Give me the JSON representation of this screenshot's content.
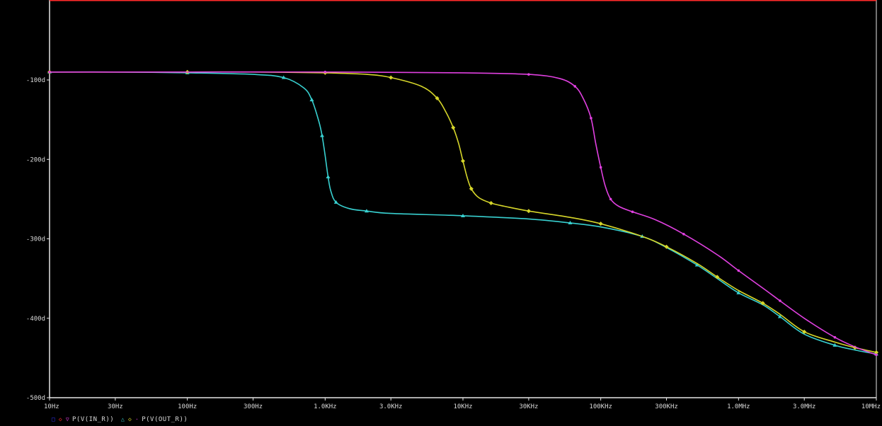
{
  "colors": {
    "background": "#000000",
    "axis": "#e6e6e6",
    "series_blue": "#3434ff",
    "series_red": "#ff2a2a",
    "series_cyan": "#38d0d0",
    "series_yellow": "#d6d62a",
    "series_magenta": "#e040e0"
  },
  "legend": {
    "entries": [
      {
        "markers": [
          {
            "icon": "square-marker-icon",
            "glyph": "□",
            "color": "#3434ff"
          },
          {
            "icon": "diamond-marker-icon",
            "glyph": "◇",
            "color": "#ff2a2a"
          },
          {
            "icon": "triangle-marker-icon",
            "glyph": "▽",
            "color": "#e040e0"
          }
        ],
        "label": "P(V(IN_R))"
      },
      {
        "markers": [
          {
            "icon": "triangle-marker-icon",
            "glyph": "△",
            "color": "#38d0d0"
          },
          {
            "icon": "diamond-marker-icon",
            "glyph": "◇",
            "color": "#d6d62a"
          },
          {
            "icon": "dot-marker-icon",
            "glyph": "·",
            "color": "#e040e0"
          }
        ],
        "label": "P(V(OUT_R))"
      }
    ]
  },
  "chart_data": {
    "type": "line",
    "title": "",
    "xlabel": "",
    "ylabel": "",
    "x_scale": "log",
    "xlim": [
      10,
      10000000
    ],
    "ylim": [
      -500,
      -90
    ],
    "grid": false,
    "legend_position": "bottom-left",
    "x_ticks": [
      {
        "value": 10,
        "label": "10Hz"
      },
      {
        "value": 30,
        "label": "30Hz"
      },
      {
        "value": 100,
        "label": "100Hz"
      },
      {
        "value": 300,
        "label": "300Hz"
      },
      {
        "value": 1000,
        "label": "1.0KHz"
      },
      {
        "value": 3000,
        "label": "3.0KHz"
      },
      {
        "value": 10000,
        "label": "10KHz"
      },
      {
        "value": 30000,
        "label": "30KHz"
      },
      {
        "value": 100000,
        "label": "100KHz"
      },
      {
        "value": 300000,
        "label": "300KHz"
      },
      {
        "value": 1000000,
        "label": "1.0MHz"
      },
      {
        "value": 3000000,
        "label": "3.0MHz"
      },
      {
        "value": 10000000,
        "label": "10MHz"
      }
    ],
    "y_ticks": [
      {
        "value": -100,
        "label": "-100d"
      },
      {
        "value": -200,
        "label": "-200d"
      },
      {
        "value": -300,
        "label": "-300d"
      },
      {
        "value": -400,
        "label": "-400d"
      },
      {
        "value": -500,
        "label": "-500d"
      }
    ],
    "series": [
      {
        "color": "#3434ff",
        "marker": "square",
        "legend_group": 0,
        "x": [
          10,
          10000000
        ],
        "y": [
          -90,
          -90
        ]
      },
      {
        "color": "#ff2a2a",
        "marker": "diamond",
        "legend_group": 0,
        "x": [
          10,
          10000000
        ],
        "y": [
          -90,
          -90
        ]
      },
      {
        "color": "#38d0d0",
        "marker": "triangle",
        "legend_group": 1,
        "x": [
          10,
          30,
          100,
          300,
          500,
          700,
          800,
          900,
          950,
          1000,
          1050,
          1100,
          1200,
          1500,
          2000,
          3000,
          10000,
          30000,
          60000,
          100000,
          200000,
          300000,
          500000,
          700000,
          1000000,
          1500000,
          2000000,
          3000000,
          5000000,
          7000000,
          10000000
        ],
        "y": [
          -90,
          -90,
          -91,
          -93,
          -97,
          -110,
          -125,
          -152,
          -170,
          -195,
          -222,
          -240,
          -254,
          -262,
          -265,
          -268,
          -271,
          -275,
          -280,
          -285,
          -297,
          -311,
          -333,
          -350,
          -368,
          -383,
          -398,
          -420,
          -434,
          -440,
          -445
        ]
      },
      {
        "color": "#d6d62a",
        "marker": "diamond",
        "legend_group": 1,
        "x": [
          10,
          30,
          100,
          300,
          1000,
          2000,
          3000,
          5000,
          6500,
          7500,
          8500,
          9300,
          10000,
          10700,
          11500,
          13000,
          16000,
          20000,
          30000,
          60000,
          100000,
          200000,
          300000,
          500000,
          700000,
          1000000,
          1500000,
          2000000,
          3000000,
          5000000,
          7000000,
          10000000
        ],
        "y": [
          -90,
          -90,
          -90,
          -90,
          -91,
          -93,
          -97,
          -108,
          -123,
          -140,
          -160,
          -180,
          -202,
          -222,
          -237,
          -248,
          -255,
          -259,
          -265,
          -273,
          -281,
          -297,
          -310,
          -331,
          -348,
          -365,
          -381,
          -395,
          -417,
          -430,
          -437,
          -443
        ]
      },
      {
        "color": "#e040e0",
        "marker": "dot",
        "legend_group": 1,
        "x": [
          10,
          100,
          1000,
          10000,
          30000,
          50000,
          65000,
          75000,
          85000,
          92000,
          100000,
          108000,
          118000,
          135000,
          170000,
          250000,
          400000,
          700000,
          1000000,
          1500000,
          2000000,
          3000000,
          5000000,
          7000000,
          10000000
        ],
        "y": [
          -90,
          -90,
          -90,
          -91,
          -93,
          -98,
          -108,
          -124,
          -148,
          -180,
          -210,
          -234,
          -250,
          -259,
          -266,
          -276,
          -294,
          -320,
          -340,
          -362,
          -378,
          -400,
          -424,
          -436,
          -446
        ]
      }
    ]
  }
}
